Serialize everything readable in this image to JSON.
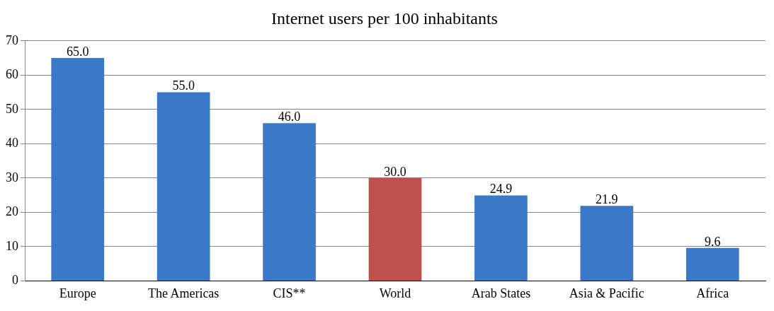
{
  "chart_data": {
    "type": "bar",
    "title": "Internet users per 100 inhabitants",
    "categories": [
      "Europe",
      "The Americas",
      "CIS**",
      "World",
      "Arab States",
      "Asia & Pacific",
      "Africa"
    ],
    "values": [
      65.0,
      55.0,
      46.0,
      30.0,
      24.9,
      21.9,
      9.6
    ],
    "colors": [
      "#3a78c8",
      "#3a78c8",
      "#3a78c8",
      "#c0504d",
      "#3a78c8",
      "#3a78c8",
      "#3a78c8"
    ],
    "value_labels": [
      "65.0",
      "55.0",
      "46.0",
      "30.0",
      "24.9",
      "21.9",
      "9.6"
    ],
    "ylim": [
      0,
      70
    ],
    "yticks": [
      0,
      10,
      20,
      30,
      40,
      50,
      60,
      70
    ],
    "grid": "y",
    "legend": false
  }
}
